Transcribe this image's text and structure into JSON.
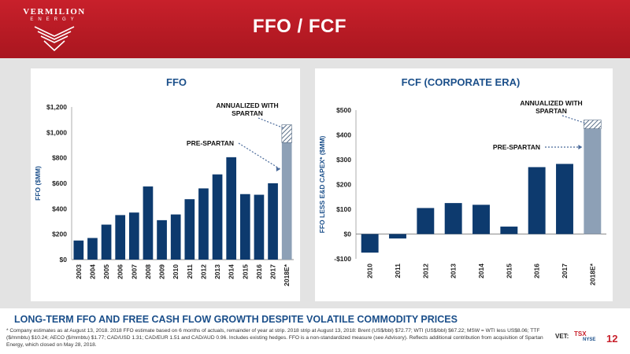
{
  "header": {
    "logo_name": "VERMILION",
    "logo_sub": "ENERGY",
    "title": "FFO / FCF"
  },
  "colors": {
    "bar": "#0d3a6e",
    "estimate_bar": "#8da0b6",
    "header_red": "#c8202b",
    "accent_blue": "#1b4f8a"
  },
  "chart_data": [
    {
      "type": "bar",
      "title": "FFO",
      "ylabel": "FFO ($MM)",
      "xlabel": "",
      "ylim": [
        0,
        1200
      ],
      "yticks": [
        0,
        200,
        400,
        600,
        800,
        1000,
        1200
      ],
      "ytick_labels": [
        "$0",
        "$200",
        "$400",
        "$600",
        "$800",
        "$1,000",
        "$1,200"
      ],
      "categories": [
        "2003",
        "2004",
        "2005",
        "2006",
        "2007",
        "2008",
        "2009",
        "2010",
        "2011",
        "2012",
        "2013",
        "2014",
        "2015",
        "2016",
        "2017",
        "2018E*"
      ],
      "values": [
        150,
        170,
        275,
        350,
        370,
        575,
        310,
        355,
        475,
        560,
        670,
        805,
        515,
        510,
        600,
        920
      ],
      "estimate_index": 15,
      "annualized_extra": 140,
      "annotations": [
        "ANNUALIZED WITH SPARTAN",
        "PRE-SPARTAN"
      ],
      "grid": false
    },
    {
      "type": "bar",
      "title": "FCF (CORPORATE ERA)",
      "ylabel": "FFO LESS E&D CAPEX* ($MM)",
      "xlabel": "",
      "ylim": [
        -100,
        500
      ],
      "yticks": [
        -100,
        0,
        100,
        200,
        300,
        400,
        500
      ],
      "ytick_labels": [
        "-$100",
        "$0",
        "$100",
        "$200",
        "$300",
        "$400",
        "$500"
      ],
      "categories": [
        "2010",
        "2011",
        "2012",
        "2013",
        "2014",
        "2015",
        "2016",
        "2017",
        "2018E*"
      ],
      "values": [
        -75,
        -18,
        105,
        125,
        118,
        30,
        270,
        283,
        425
      ],
      "estimate_index": 8,
      "annualized_extra": 35,
      "annotations": [
        "ANNUALIZED WITH SPARTAN",
        "PRE-SPARTAN"
      ],
      "grid": false
    }
  ],
  "bottom_title": "LONG-TERM FFO AND FREE CASH FLOW GROWTH DESPITE VOLATILE COMMODITY PRICES",
  "footnote": "* Company estimates as at August 13, 2018. 2018 FFO estimate based on 6 months of actuals, remainder of year at strip. 2018 strip at August 13, 2018: Brent (US$/bbl) $72.77; WTI (US$/bbl) $67.22; MSW = WTI less US$8.06; TTF ($/mmbtu) $10.24; AECO ($/mmbtu) $1.77; CAD/USD 1.31; CAD/EUR 1.51 and CAD/AUD 0.96. Includes existing hedges. FFO is a non-standardized measure (see Advisory). Reflects additional contribution from acquisition of Spartan Energy, which closed on May 28, 2018.",
  "exchange": {
    "vet": "VET:",
    "tsx": "TSX",
    "nyse": "NYSE"
  },
  "page_number": "12"
}
